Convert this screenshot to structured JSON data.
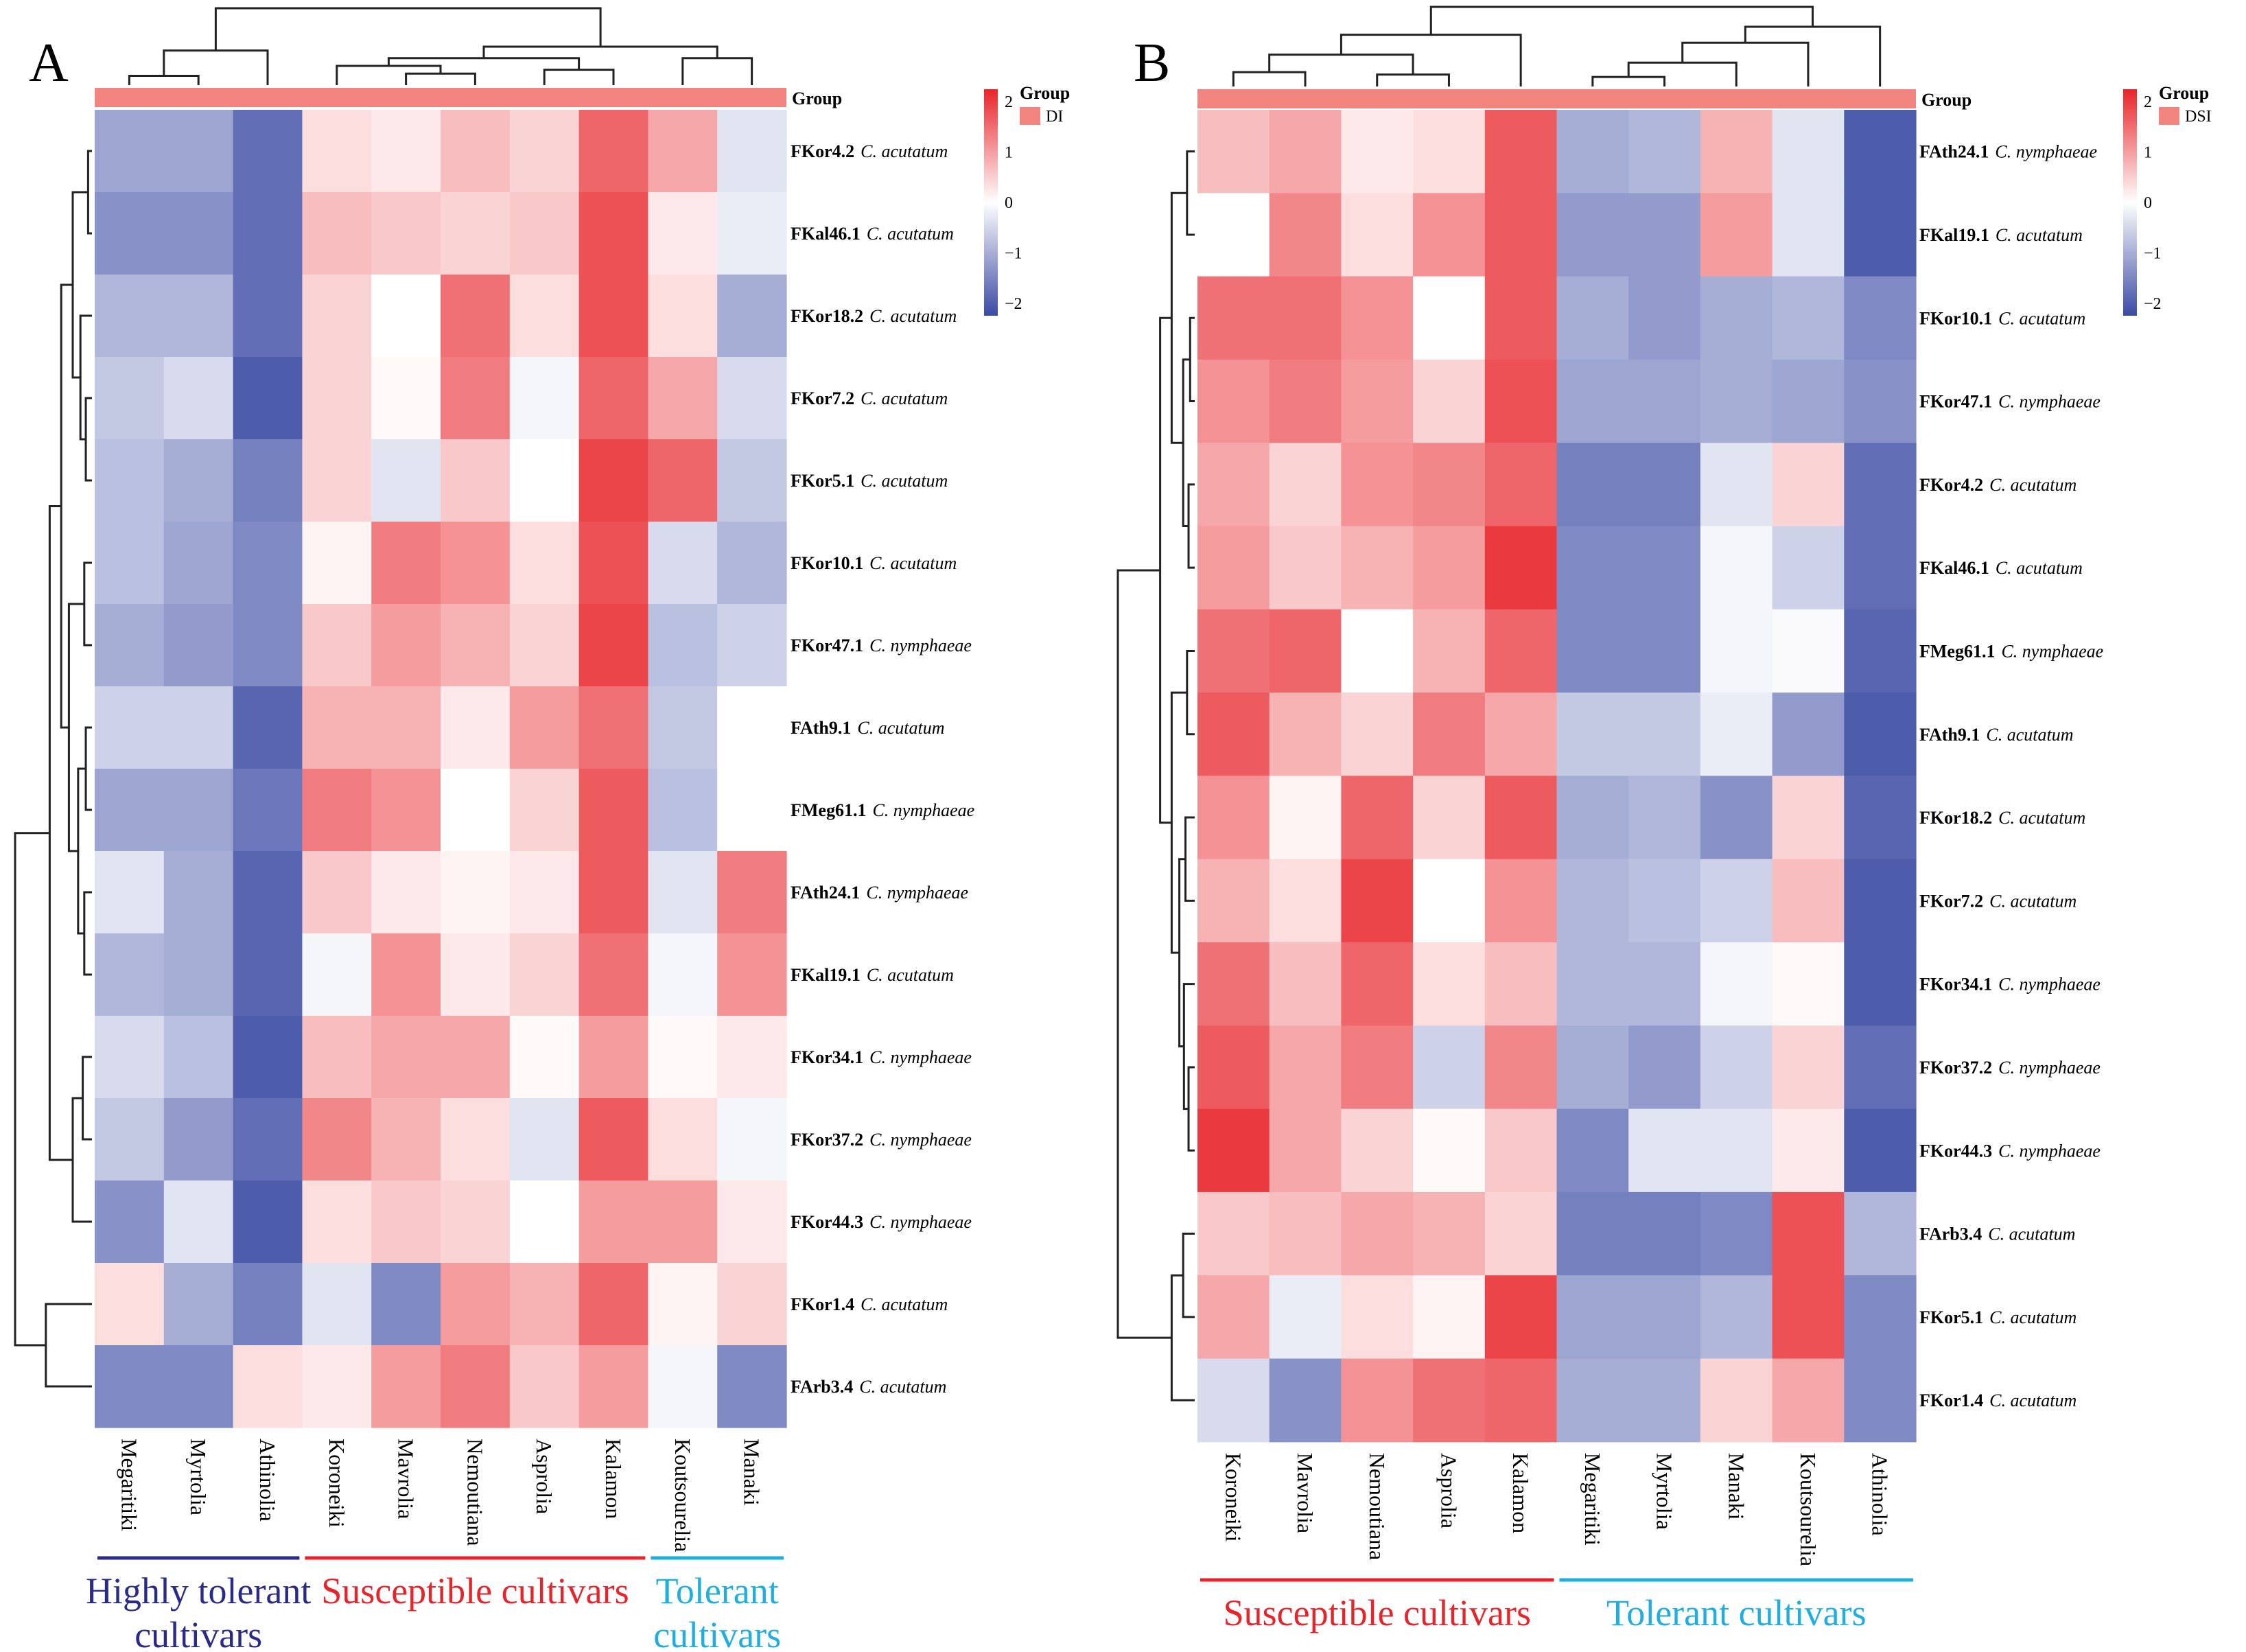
{
  "colors": {
    "low": "#3a4aa3",
    "mid": "#ffffff",
    "high": "#e8242a",
    "group_bar": "#f2857f",
    "highly_tolerant": "#2a2a8a",
    "susceptible": "#e8242a",
    "tolerant": "#1eaee0"
  },
  "chart_data": [
    {
      "type": "heatmap",
      "panel_label": "A",
      "annotation_row_label": "Group",
      "legend": {
        "title": "Group",
        "entry": "DI",
        "ticks": [
          "2",
          "1",
          "0",
          "−1",
          "−2"
        ],
        "range": [
          -2,
          2
        ]
      },
      "columns": [
        "Megaritiki",
        "Myrtolia",
        "Athinolia",
        "Koroneiki",
        "Mavrolia",
        "Nemoutiana",
        "Asprolia",
        "Kalamon",
        "Koutsourelia",
        "Manaki"
      ],
      "rows": [
        {
          "strain": "FKor4.2",
          "species": "C. acutatum"
        },
        {
          "strain": "FKal46.1",
          "species": "C. acutatum"
        },
        {
          "strain": "FKor18.2",
          "species": "C. acutatum"
        },
        {
          "strain": "FKor7.2",
          "species": "C. acutatum"
        },
        {
          "strain": "FKor5.1",
          "species": "C. acutatum"
        },
        {
          "strain": "FKor10.1",
          "species": "C. acutatum"
        },
        {
          "strain": "FKor47.1",
          "species": "C. nymphaeae"
        },
        {
          "strain": "FAth9.1",
          "species": "C. acutatum"
        },
        {
          "strain": "FMeg61.1",
          "species": "C. nymphaeae"
        },
        {
          "strain": "FAth24.1",
          "species": "C. nymphaeae"
        },
        {
          "strain": "FKal19.1",
          "species": "C. acutatum"
        },
        {
          "strain": "FKor34.1",
          "species": "C. nymphaeae"
        },
        {
          "strain": "FKor37.2",
          "species": "C. nymphaeae"
        },
        {
          "strain": "FKor44.3",
          "species": "C. nymphaeae"
        },
        {
          "strain": "FKor1.4",
          "species": "C. acutatum"
        },
        {
          "strain": "FArb3.4",
          "species": "C. acutatum"
        }
      ],
      "values": [
        [
          -1.0,
          -1.0,
          -1.6,
          0.3,
          0.2,
          0.6,
          0.4,
          1.4,
          0.8,
          -0.3
        ],
        [
          -1.2,
          -1.2,
          -1.6,
          0.6,
          0.5,
          0.4,
          0.5,
          1.6,
          0.2,
          -0.2
        ],
        [
          -0.8,
          -0.8,
          -1.6,
          0.4,
          0.0,
          1.3,
          0.3,
          1.6,
          0.3,
          -0.9
        ],
        [
          -0.6,
          -0.4,
          -1.8,
          0.4,
          0.05,
          1.2,
          -0.1,
          1.4,
          0.8,
          -0.4
        ],
        [
          -0.7,
          -0.9,
          -1.4,
          0.4,
          -0.3,
          0.5,
          0.0,
          1.7,
          1.4,
          -0.6
        ],
        [
          -0.7,
          -1.0,
          -1.3,
          0.1,
          1.2,
          1.0,
          0.3,
          1.6,
          -0.4,
          -0.8
        ],
        [
          -0.9,
          -1.1,
          -1.3,
          0.5,
          0.9,
          0.7,
          0.4,
          1.7,
          -0.7,
          -0.5
        ],
        [
          -0.5,
          -0.5,
          -1.7,
          0.7,
          0.7,
          0.2,
          0.9,
          1.3,
          -0.6,
          0.0
        ],
        [
          -1.0,
          -1.0,
          -1.5,
          1.2,
          1.0,
          0.0,
          0.4,
          1.5,
          -0.7,
          0.0
        ],
        [
          -0.3,
          -0.9,
          -1.7,
          0.5,
          0.2,
          0.1,
          0.2,
          1.5,
          -0.3,
          1.2
        ],
        [
          -0.8,
          -0.9,
          -1.7,
          -0.1,
          1.0,
          0.2,
          0.4,
          1.3,
          -0.1,
          1.0
        ],
        [
          -0.4,
          -0.7,
          -1.8,
          0.6,
          0.8,
          0.8,
          0.05,
          0.9,
          0.05,
          0.2
        ],
        [
          -0.6,
          -1.1,
          -1.6,
          1.1,
          0.7,
          0.3,
          -0.3,
          1.5,
          0.3,
          -0.1
        ],
        [
          -1.2,
          -0.3,
          -1.8,
          0.3,
          0.5,
          0.4,
          0.0,
          0.9,
          0.9,
          0.2
        ],
        [
          0.3,
          -0.9,
          -1.4,
          -0.3,
          -1.3,
          0.9,
          0.7,
          1.4,
          0.1,
          0.4
        ],
        [
          -1.3,
          -1.3,
          0.3,
          0.2,
          0.9,
          1.2,
          0.5,
          0.9,
          -0.1,
          -1.3
        ]
      ],
      "group_labels": [
        {
          "label": "Highly tolerant cultivars",
          "lines": [
            "Highly tolerant",
            "cultivars"
          ],
          "span": [
            0,
            2
          ],
          "color_key": "highly_tolerant"
        },
        {
          "label": "Susceptible cultivars",
          "lines": [
            "Susceptible cultivars"
          ],
          "span": [
            3,
            7
          ],
          "color_key": "susceptible"
        },
        {
          "label": "Tolerant cultivars",
          "lines": [
            "Tolerant",
            "cultivars"
          ],
          "span": [
            8,
            9
          ],
          "color_key": "tolerant"
        }
      ]
    },
    {
      "type": "heatmap",
      "panel_label": "B",
      "annotation_row_label": "Group",
      "legend": {
        "title": "Group",
        "entry": "DSI",
        "ticks": [
          "2",
          "1",
          "0",
          "−1",
          "−2"
        ],
        "range": [
          -2,
          2
        ]
      },
      "columns": [
        "Koroneiki",
        "Mavrolia",
        "Nemoutiana",
        "Asprolia",
        "Kalamon",
        "Megaritiki",
        "Myrtolia",
        "Manaki",
        "Koutsourelia",
        "Athinolia"
      ],
      "rows": [
        {
          "strain": "FAth24.1",
          "species": "C. nymphaeae"
        },
        {
          "strain": "FKal19.1",
          "species": "C. acutatum"
        },
        {
          "strain": "FKor10.1",
          "species": "C. acutatum"
        },
        {
          "strain": "FKor47.1",
          "species": "C. nymphaeae"
        },
        {
          "strain": "FKor4.2",
          "species": "C. acutatum"
        },
        {
          "strain": "FKal46.1",
          "species": "C. acutatum"
        },
        {
          "strain": "FMeg61.1",
          "species": "C. nymphaeae"
        },
        {
          "strain": "FAth9.1",
          "species": "C. acutatum"
        },
        {
          "strain": "FKor18.2",
          "species": "C. acutatum"
        },
        {
          "strain": "FKor7.2",
          "species": "C. acutatum"
        },
        {
          "strain": "FKor34.1",
          "species": "C. nymphaeae"
        },
        {
          "strain": "FKor37.2",
          "species": "C. nymphaeae"
        },
        {
          "strain": "FKor44.3",
          "species": "C. nymphaeae"
        },
        {
          "strain": "FArb3.4",
          "species": "C. acutatum"
        },
        {
          "strain": "FKor5.1",
          "species": "C. acutatum"
        },
        {
          "strain": "FKor1.4",
          "species": "C. acutatum"
        }
      ],
      "values": [
        [
          0.6,
          0.8,
          0.2,
          0.3,
          1.5,
          -0.9,
          -0.8,
          0.7,
          -0.3,
          -1.8
        ],
        [
          0.0,
          1.1,
          0.3,
          1.0,
          1.5,
          -1.1,
          -1.1,
          0.9,
          -0.3,
          -1.8
        ],
        [
          1.3,
          1.3,
          1.0,
          0.0,
          1.5,
          -0.9,
          -1.1,
          -0.9,
          -0.8,
          -1.3
        ],
        [
          1.0,
          1.2,
          0.9,
          0.4,
          1.6,
          -1.0,
          -1.0,
          -0.9,
          -1.0,
          -1.2
        ],
        [
          0.8,
          0.4,
          1.0,
          1.1,
          1.4,
          -1.4,
          -1.4,
          -0.3,
          0.4,
          -1.6
        ],
        [
          0.9,
          0.5,
          0.7,
          0.9,
          1.8,
          -1.3,
          -1.3,
          -0.1,
          -0.5,
          -1.6
        ],
        [
          1.3,
          1.4,
          0.0,
          0.7,
          1.4,
          -1.3,
          -1.3,
          -0.1,
          -0.05,
          -1.7
        ],
        [
          1.5,
          0.7,
          0.4,
          1.2,
          0.8,
          -0.6,
          -0.6,
          -0.2,
          -1.1,
          -1.8
        ],
        [
          1.0,
          0.1,
          1.4,
          0.4,
          1.5,
          -0.9,
          -0.8,
          -1.2,
          0.4,
          -1.7
        ],
        [
          0.7,
          0.3,
          1.7,
          0.0,
          1.0,
          -0.8,
          -0.7,
          -0.5,
          0.6,
          -1.8
        ],
        [
          1.3,
          0.6,
          1.4,
          0.3,
          0.6,
          -0.8,
          -0.8,
          -0.1,
          0.05,
          -1.8
        ],
        [
          1.5,
          0.8,
          1.2,
          -0.5,
          1.1,
          -0.9,
          -1.1,
          -0.5,
          0.4,
          -1.6
        ],
        [
          1.8,
          0.8,
          0.4,
          0.05,
          0.5,
          -1.3,
          -0.3,
          -0.3,
          0.2,
          -1.8
        ],
        [
          0.5,
          0.6,
          0.8,
          0.7,
          0.4,
          -1.4,
          -1.4,
          -1.3,
          1.6,
          -0.8
        ],
        [
          0.8,
          -0.2,
          0.3,
          0.1,
          1.7,
          -1.0,
          -1.0,
          -0.8,
          1.6,
          -1.3
        ],
        [
          -0.4,
          -1.2,
          1.0,
          1.3,
          1.4,
          -0.9,
          -0.9,
          0.4,
          0.8,
          -1.3
        ]
      ],
      "group_labels": [
        {
          "label": "Susceptible cultivars",
          "lines": [
            "Susceptible cultivars"
          ],
          "span": [
            0,
            4
          ],
          "color_key": "susceptible"
        },
        {
          "label": "Tolerant cultivars",
          "lines": [
            "Tolerant cultivars"
          ],
          "span": [
            5,
            9
          ],
          "color_key": "tolerant"
        }
      ]
    }
  ]
}
